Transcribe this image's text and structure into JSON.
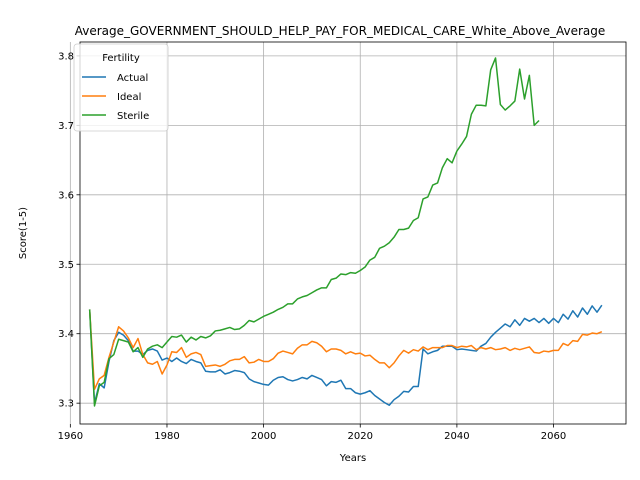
{
  "chart_data": {
    "type": "line",
    "title": "Average_GOVERNMENT_SHOULD_HELP_PAY_FOR_MEDICAL_CARE_White_Above_Average",
    "xlabel": "Years",
    "ylabel": "Score(1-5)",
    "xlim": [
      1962,
      2075
    ],
    "ylim": [
      3.27,
      3.82
    ],
    "xticks": [
      1960,
      1980,
      2000,
      2020,
      2040,
      2060
    ],
    "yticks": [
      3.3,
      3.4,
      3.5,
      3.6,
      3.7,
      3.8
    ],
    "grid": true,
    "legend": {
      "title": "Fertility",
      "placement": "top-left"
    },
    "series": [
      {
        "name": "Actual",
        "color": "#1f77b4",
        "points": [
          [
            1964,
            3.435
          ],
          [
            1965,
            3.3
          ],
          [
            1966,
            3.328
          ],
          [
            1967,
            3.322
          ],
          [
            1968,
            3.36
          ],
          [
            1969,
            3.39
          ],
          [
            1970,
            3.402
          ],
          [
            1971,
            3.398
          ],
          [
            1972,
            3.39
          ],
          [
            1973,
            3.375
          ],
          [
            1974,
            3.375
          ],
          [
            1975,
            3.37
          ],
          [
            1976,
            3.376
          ],
          [
            1977,
            3.378
          ],
          [
            1978,
            3.375
          ],
          [
            1979,
            3.362
          ],
          [
            1980,
            3.365
          ],
          [
            1981,
            3.36
          ],
          [
            1982,
            3.365
          ],
          [
            1983,
            3.36
          ],
          [
            1984,
            3.357
          ],
          [
            1985,
            3.363
          ],
          [
            1986,
            3.36
          ],
          [
            1987,
            3.358
          ],
          [
            1988,
            3.346
          ],
          [
            1989,
            3.345
          ],
          [
            1990,
            3.345
          ],
          [
            1991,
            3.348
          ],
          [
            1992,
            3.342
          ],
          [
            1993,
            3.344
          ],
          [
            1994,
            3.347
          ],
          [
            1995,
            3.346
          ],
          [
            1996,
            3.344
          ],
          [
            1997,
            3.335
          ],
          [
            1998,
            3.331
          ],
          [
            1999,
            3.329
          ],
          [
            2000,
            3.327
          ],
          [
            2001,
            3.326
          ],
          [
            2002,
            3.333
          ],
          [
            2003,
            3.337
          ],
          [
            2004,
            3.338
          ],
          [
            2005,
            3.334
          ],
          [
            2006,
            3.332
          ],
          [
            2007,
            3.334
          ],
          [
            2008,
            3.337
          ],
          [
            2009,
            3.335
          ],
          [
            2010,
            3.34
          ],
          [
            2011,
            3.337
          ],
          [
            2012,
            3.334
          ],
          [
            2013,
            3.325
          ],
          [
            2014,
            3.331
          ],
          [
            2015,
            3.33
          ],
          [
            2016,
            3.333
          ],
          [
            2017,
            3.321
          ],
          [
            2018,
            3.321
          ],
          [
            2019,
            3.315
          ],
          [
            2020,
            3.313
          ],
          [
            2021,
            3.315
          ],
          [
            2022,
            3.318
          ],
          [
            2023,
            3.311
          ],
          [
            2024,
            3.306
          ],
          [
            2025,
            3.301
          ],
          [
            2026,
            3.297
          ],
          [
            2027,
            3.305
          ],
          [
            2028,
            3.31
          ],
          [
            2029,
            3.317
          ],
          [
            2030,
            3.316
          ],
          [
            2031,
            3.324
          ],
          [
            2032,
            3.324
          ],
          [
            2033,
            3.378
          ],
          [
            2034,
            3.371
          ],
          [
            2035,
            3.374
          ],
          [
            2036,
            3.376
          ],
          [
            2037,
            3.382
          ],
          [
            2038,
            3.382
          ],
          [
            2039,
            3.382
          ],
          [
            2040,
            3.377
          ],
          [
            2041,
            3.378
          ],
          [
            2042,
            3.377
          ],
          [
            2043,
            3.376
          ],
          [
            2044,
            3.375
          ],
          [
            2045,
            3.382
          ],
          [
            2046,
            3.386
          ],
          [
            2047,
            3.395
          ],
          [
            2048,
            3.402
          ],
          [
            2049,
            3.408
          ],
          [
            2050,
            3.414
          ],
          [
            2051,
            3.41
          ],
          [
            2052,
            3.42
          ],
          [
            2053,
            3.412
          ],
          [
            2054,
            3.422
          ],
          [
            2055,
            3.418
          ],
          [
            2056,
            3.422
          ],
          [
            2057,
            3.416
          ],
          [
            2058,
            3.422
          ],
          [
            2059,
            3.415
          ],
          [
            2060,
            3.422
          ],
          [
            2061,
            3.416
          ],
          [
            2062,
            3.428
          ],
          [
            2063,
            3.421
          ],
          [
            2064,
            3.433
          ],
          [
            2065,
            3.424
          ],
          [
            2066,
            3.437
          ],
          [
            2067,
            3.428
          ],
          [
            2068,
            3.44
          ],
          [
            2069,
            3.431
          ],
          [
            2070,
            3.441
          ]
        ]
      },
      {
        "name": "Ideal",
        "color": "#ff7f0e",
        "points": [
          [
            1964,
            3.435
          ],
          [
            1965,
            3.32
          ],
          [
            1966,
            3.335
          ],
          [
            1967,
            3.34
          ],
          [
            1968,
            3.366
          ],
          [
            1969,
            3.388
          ],
          [
            1970,
            3.41
          ],
          [
            1971,
            3.404
          ],
          [
            1972,
            3.394
          ],
          [
            1973,
            3.38
          ],
          [
            1974,
            3.393
          ],
          [
            1975,
            3.37
          ],
          [
            1976,
            3.358
          ],
          [
            1977,
            3.356
          ],
          [
            1978,
            3.36
          ],
          [
            1979,
            3.342
          ],
          [
            1980,
            3.355
          ],
          [
            1981,
            3.374
          ],
          [
            1982,
            3.373
          ],
          [
            1983,
            3.38
          ],
          [
            1984,
            3.366
          ],
          [
            1985,
            3.371
          ],
          [
            1986,
            3.373
          ],
          [
            1987,
            3.37
          ],
          [
            1988,
            3.353
          ],
          [
            1989,
            3.354
          ],
          [
            1990,
            3.355
          ],
          [
            1991,
            3.353
          ],
          [
            1992,
            3.356
          ],
          [
            1993,
            3.361
          ],
          [
            1994,
            3.363
          ],
          [
            1995,
            3.363
          ],
          [
            1996,
            3.367
          ],
          [
            1997,
            3.358
          ],
          [
            1998,
            3.359
          ],
          [
            1999,
            3.363
          ],
          [
            2000,
            3.36
          ],
          [
            2001,
            3.36
          ],
          [
            2002,
            3.364
          ],
          [
            2003,
            3.372
          ],
          [
            2004,
            3.375
          ],
          [
            2005,
            3.373
          ],
          [
            2006,
            3.371
          ],
          [
            2007,
            3.379
          ],
          [
            2008,
            3.384
          ],
          [
            2009,
            3.384
          ],
          [
            2010,
            3.389
          ],
          [
            2011,
            3.387
          ],
          [
            2012,
            3.382
          ],
          [
            2013,
            3.374
          ],
          [
            2014,
            3.378
          ],
          [
            2015,
            3.378
          ],
          [
            2016,
            3.376
          ],
          [
            2017,
            3.371
          ],
          [
            2018,
            3.374
          ],
          [
            2019,
            3.371
          ],
          [
            2020,
            3.372
          ],
          [
            2021,
            3.368
          ],
          [
            2022,
            3.369
          ],
          [
            2023,
            3.363
          ],
          [
            2024,
            3.358
          ],
          [
            2025,
            3.358
          ],
          [
            2026,
            3.351
          ],
          [
            2027,
            3.358
          ],
          [
            2028,
            3.368
          ],
          [
            2029,
            3.376
          ],
          [
            2030,
            3.372
          ],
          [
            2031,
            3.377
          ],
          [
            2032,
            3.375
          ],
          [
            2033,
            3.381
          ],
          [
            2034,
            3.377
          ],
          [
            2035,
            3.38
          ],
          [
            2036,
            3.38
          ],
          [
            2037,
            3.38
          ],
          [
            2038,
            3.383
          ],
          [
            2039,
            3.383
          ],
          [
            2040,
            3.38
          ],
          [
            2041,
            3.382
          ],
          [
            2042,
            3.381
          ],
          [
            2043,
            3.383
          ],
          [
            2044,
            3.377
          ],
          [
            2045,
            3.38
          ],
          [
            2046,
            3.378
          ],
          [
            2047,
            3.38
          ],
          [
            2048,
            3.377
          ],
          [
            2049,
            3.378
          ],
          [
            2050,
            3.38
          ],
          [
            2051,
            3.376
          ],
          [
            2052,
            3.379
          ],
          [
            2053,
            3.377
          ],
          [
            2054,
            3.379
          ],
          [
            2055,
            3.381
          ],
          [
            2056,
            3.373
          ],
          [
            2057,
            3.372
          ],
          [
            2058,
            3.375
          ],
          [
            2059,
            3.374
          ],
          [
            2060,
            3.376
          ],
          [
            2061,
            3.376
          ],
          [
            2062,
            3.386
          ],
          [
            2063,
            3.383
          ],
          [
            2064,
            3.39
          ],
          [
            2065,
            3.389
          ],
          [
            2066,
            3.399
          ],
          [
            2067,
            3.398
          ],
          [
            2068,
            3.401
          ],
          [
            2069,
            3.4
          ],
          [
            2070,
            3.403
          ]
        ]
      },
      {
        "name": "Sterile",
        "color": "#2ca02c",
        "points": [
          [
            1964,
            3.435
          ],
          [
            1965,
            3.296
          ],
          [
            1966,
            3.325
          ],
          [
            1967,
            3.33
          ],
          [
            1968,
            3.364
          ],
          [
            1969,
            3.37
          ],
          [
            1970,
            3.392
          ],
          [
            1971,
            3.39
          ],
          [
            1972,
            3.388
          ],
          [
            1973,
            3.374
          ],
          [
            1974,
            3.38
          ],
          [
            1975,
            3.366
          ],
          [
            1976,
            3.378
          ],
          [
            1977,
            3.382
          ],
          [
            1978,
            3.384
          ],
          [
            1979,
            3.38
          ],
          [
            1980,
            3.388
          ],
          [
            1981,
            3.396
          ],
          [
            1982,
            3.395
          ],
          [
            1983,
            3.398
          ],
          [
            1984,
            3.388
          ],
          [
            1985,
            3.395
          ],
          [
            1986,
            3.391
          ],
          [
            1987,
            3.396
          ],
          [
            1988,
            3.394
          ],
          [
            1989,
            3.397
          ],
          [
            1990,
            3.404
          ],
          [
            1991,
            3.405
          ],
          [
            1992,
            3.407
          ],
          [
            1993,
            3.409
          ],
          [
            1994,
            3.406
          ],
          [
            1995,
            3.407
          ],
          [
            1996,
            3.412
          ],
          [
            1997,
            3.419
          ],
          [
            1998,
            3.417
          ],
          [
            1999,
            3.421
          ],
          [
            2000,
            3.425
          ],
          [
            2001,
            3.428
          ],
          [
            2002,
            3.431
          ],
          [
            2003,
            3.435
          ],
          [
            2004,
            3.438
          ],
          [
            2005,
            3.443
          ],
          [
            2006,
            3.443
          ],
          [
            2007,
            3.45
          ],
          [
            2008,
            3.453
          ],
          [
            2009,
            3.455
          ],
          [
            2010,
            3.459
          ],
          [
            2011,
            3.463
          ],
          [
            2012,
            3.466
          ],
          [
            2013,
            3.466
          ],
          [
            2014,
            3.478
          ],
          [
            2015,
            3.48
          ],
          [
            2016,
            3.486
          ],
          [
            2017,
            3.485
          ],
          [
            2018,
            3.488
          ],
          [
            2019,
            3.487
          ],
          [
            2020,
            3.491
          ],
          [
            2021,
            3.496
          ],
          [
            2022,
            3.506
          ],
          [
            2023,
            3.51
          ],
          [
            2024,
            3.523
          ],
          [
            2025,
            3.526
          ],
          [
            2026,
            3.531
          ],
          [
            2027,
            3.539
          ],
          [
            2028,
            3.55
          ],
          [
            2029,
            3.55
          ],
          [
            2030,
            3.552
          ],
          [
            2031,
            3.563
          ],
          [
            2032,
            3.567
          ],
          [
            2033,
            3.594
          ],
          [
            2034,
            3.597
          ],
          [
            2035,
            3.614
          ],
          [
            2036,
            3.617
          ],
          [
            2037,
            3.639
          ],
          [
            2038,
            3.652
          ],
          [
            2039,
            3.646
          ],
          [
            2040,
            3.663
          ],
          [
            2041,
            3.673
          ],
          [
            2042,
            3.684
          ],
          [
            2043,
            3.716
          ],
          [
            2044,
            3.729
          ],
          [
            2045,
            3.729
          ],
          [
            2046,
            3.728
          ],
          [
            2047,
            3.78
          ],
          [
            2048,
            3.797
          ],
          [
            2049,
            3.73
          ],
          [
            2050,
            3.722
          ],
          [
            2051,
            3.728
          ],
          [
            2052,
            3.735
          ],
          [
            2053,
            3.781
          ],
          [
            2054,
            3.738
          ],
          [
            2055,
            3.772
          ],
          [
            2056,
            3.7
          ],
          [
            2057,
            3.707
          ]
        ]
      }
    ]
  }
}
